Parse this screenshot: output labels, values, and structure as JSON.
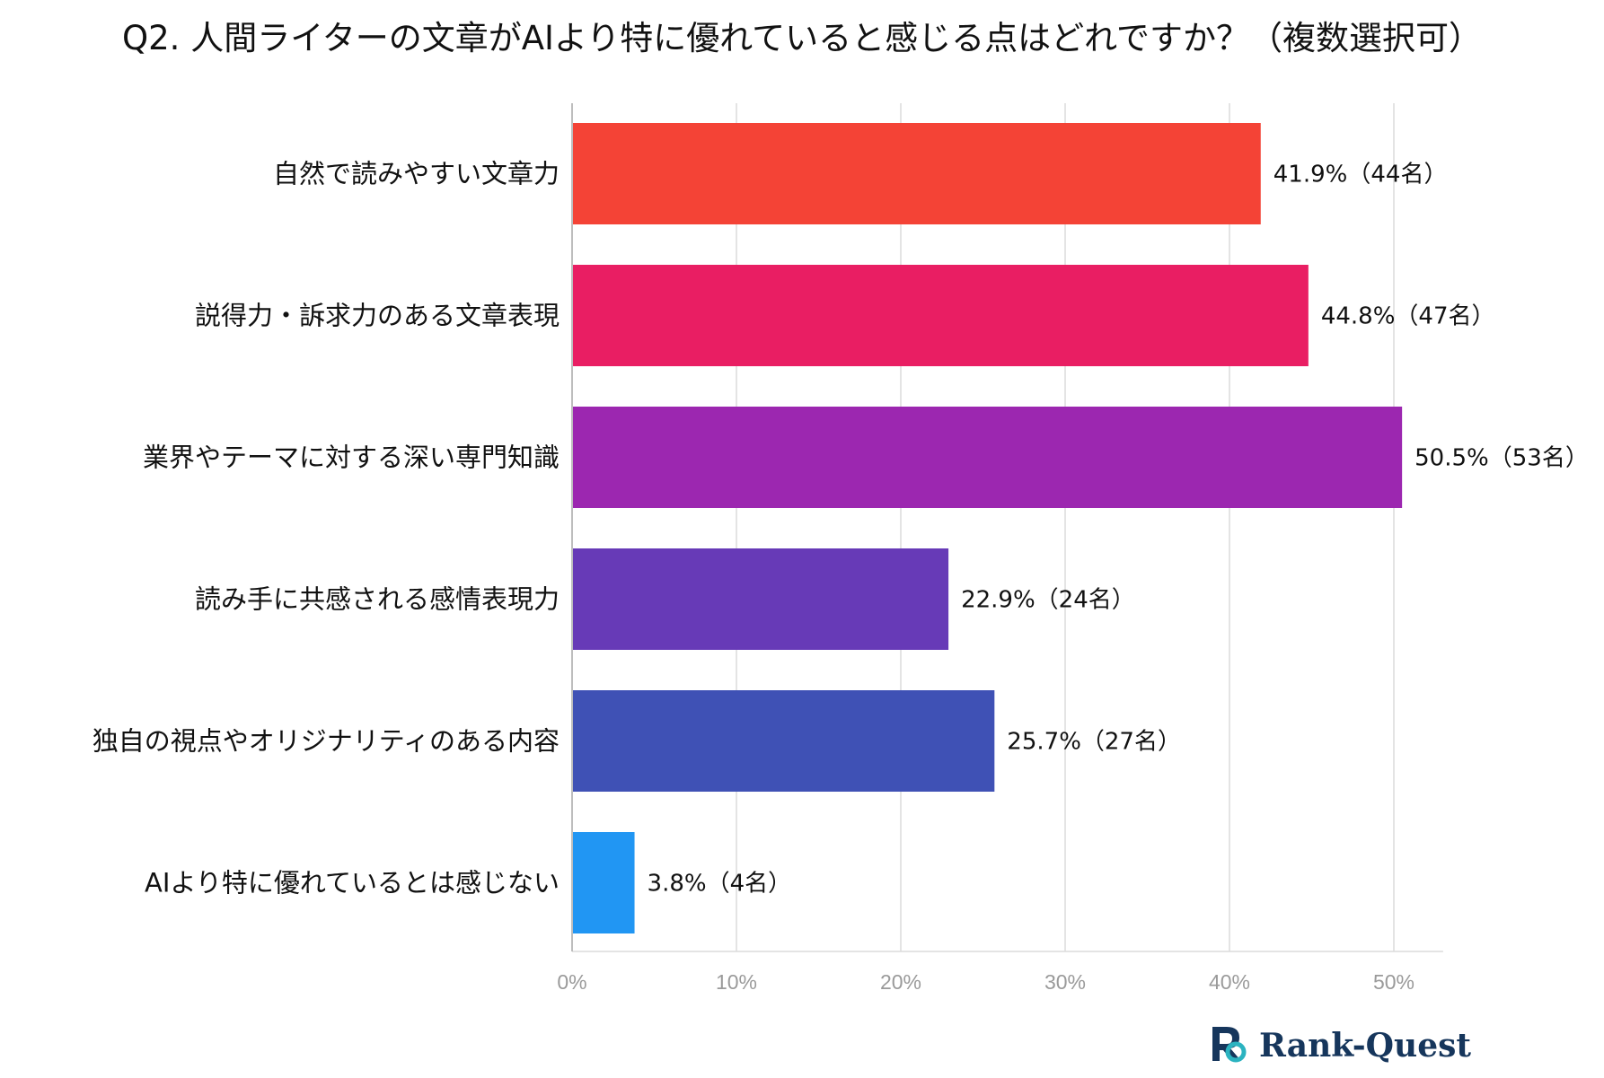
{
  "title": "Q2. 人間ライターの文章がAIより特に優れていると感じる点はどれですか？（複数選択可）",
  "chart_data": {
    "type": "bar",
    "orientation": "horizontal",
    "title": "Q2. 人間ライターの文章がAIより特に優れていると感じる点はどれですか？（複数選択可）",
    "xlabel": "",
    "ylabel": "",
    "xlim": [
      0,
      53
    ],
    "grid": true,
    "legend": "none",
    "categories": [
      "自然で読みやすい文章力",
      "説得力・訴求力のある文章表現",
      "業界やテーマに対する深い専門知識",
      "読み手に共感される感情表現力",
      "独自の視点やオリジナリティのある内容",
      "AIより特に優れているとは感じない"
    ],
    "values": [
      41.9,
      44.8,
      50.5,
      22.9,
      25.7,
      3.8
    ],
    "data_labels": [
      "41.9%（44名）",
      "44.8%（47名）",
      "50.5%（53名）",
      "22.9%（24名）",
      "25.7%（27名）",
      "3.8%（4名）"
    ],
    "colors": [
      "#f44336",
      "#e91e63",
      "#9c27b0",
      "#673ab7",
      "#3f51b5",
      "#2196f3"
    ],
    "ticks": [
      0,
      10,
      20,
      30,
      40,
      50
    ],
    "tick_labels": [
      "0%",
      "10%",
      "20%",
      "30%",
      "40%",
      "50%"
    ]
  },
  "brand": {
    "name": "Rank-Quest",
    "logo_colors": {
      "navy": "#16365c",
      "teal": "#2bb3c0"
    }
  }
}
